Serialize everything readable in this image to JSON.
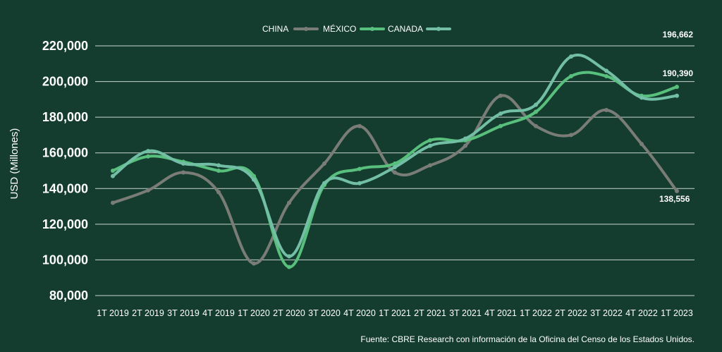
{
  "chart_data": {
    "type": "line",
    "ylabel": "USD (Millones)",
    "ylim": [
      80000,
      220000
    ],
    "yticks": [
      "220,000",
      "200,000",
      "180,000",
      "160,000",
      "140,000",
      "120,000",
      "100,000",
      "80,000"
    ],
    "ytick_values": [
      220000,
      200000,
      180000,
      160000,
      140000,
      120000,
      100000,
      80000
    ],
    "categories": [
      "1T 2019",
      "2T 2019",
      "3T 2019",
      "4T 2019",
      "1T 2020",
      "2T 2020",
      "3T 2020",
      "4T 2020",
      "1T 2021",
      "2T 2021",
      "3T 2021",
      "4T 2021",
      "1T 2022",
      "2T 2022",
      "3T 2022",
      "4T 2022",
      "1T 2023"
    ],
    "grid": true,
    "legend_position": "top-center",
    "legend": [
      "CHINA",
      "MÉXICO",
      "CANADA"
    ],
    "series": [
      {
        "name": "CHINA",
        "color": "#7a7c78",
        "values": [
          132000,
          139000,
          149000,
          138000,
          98000,
          132000,
          154000,
          175000,
          149000,
          153000,
          164000,
          192000,
          175000,
          170000,
          184000,
          165000,
          138556
        ]
      },
      {
        "name": "MÉXICO",
        "color": "#58c07c",
        "values": [
          150000,
          158000,
          155000,
          150000,
          147000,
          96000,
          142000,
          151000,
          154000,
          167000,
          167000,
          175000,
          183000,
          203000,
          203000,
          192000,
          197000
        ]
      },
      {
        "name": "CANADA",
        "color": "#72bfa6",
        "values": [
          147000,
          161000,
          154000,
          153000,
          145000,
          102000,
          143000,
          143000,
          152000,
          164000,
          168000,
          182000,
          187000,
          214000,
          206000,
          191000,
          192000
        ]
      }
    ],
    "data_labels": [
      {
        "text": "196,662"
      },
      {
        "text": "190,390"
      },
      {
        "text": "138,556"
      }
    ],
    "source": "Fuente: CBRE Research con información de la Oficina del Censo de los Estados Unidos."
  }
}
